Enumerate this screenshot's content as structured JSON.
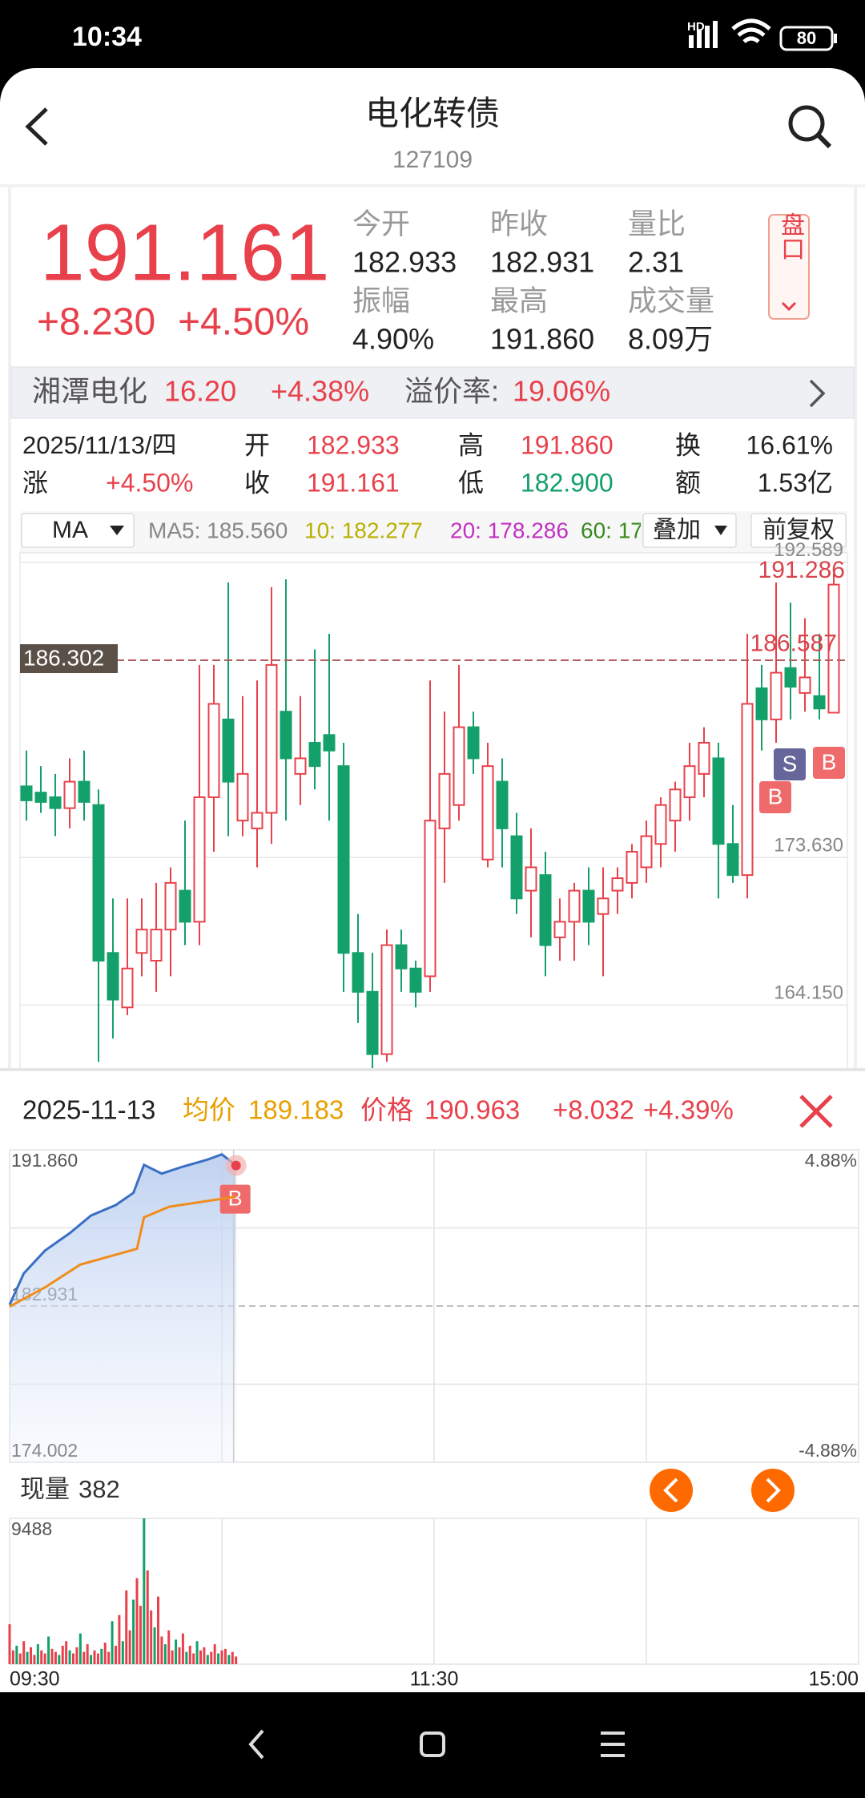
{
  "status_bar": {
    "time": "10:34",
    "network": "HD",
    "battery": "80"
  },
  "header": {
    "title": "电化转债",
    "code": "127109"
  },
  "quote": {
    "price": "191.161",
    "change": "+8.230",
    "change_pct": "+4.50%",
    "stats": [
      {
        "label": "今开",
        "value": "182.933"
      },
      {
        "label": "昨收",
        "value": "182.931"
      },
      {
        "label": "量比",
        "value": "2.31"
      },
      {
        "label": "振幅",
        "value": "4.90%"
      },
      {
        "label": "最高",
        "value": "191.860"
      },
      {
        "label": "成交量",
        "value": "8.09万"
      }
    ],
    "button": "盘口"
  },
  "underlying": {
    "name": "湘潭电化",
    "price": "16.20",
    "change_pct": "+4.38%",
    "premium_label": "溢价率:",
    "premium": "19.06%"
  },
  "day_info": {
    "date": "2025/11/13/四",
    "items": [
      {
        "label": "开",
        "value": "182.933"
      },
      {
        "label": "高",
        "value": "191.860"
      },
      {
        "label": "换",
        "value": "16.61%"
      },
      {
        "label": "涨",
        "value": "+4.50%"
      },
      {
        "label": "收",
        "value": "191.161"
      },
      {
        "label": "低",
        "value": "182.900"
      },
      {
        "label": "额",
        "value": "1.53亿"
      }
    ]
  },
  "ma_bar": {
    "selector": "MA",
    "ma5": "MA5: 185.560",
    "ma10": "10: 182.277",
    "ma20": "20: 178.286",
    "ma60": "60: 17",
    "overlay": "叠加",
    "adjust": "前复权"
  },
  "kline": {
    "type": "candlestick",
    "ylim": [
      160,
      193.2
    ],
    "yticks": [
      192.589,
      {
        "value": 173.63,
        "label": "173.630"
      },
      {
        "value": 164.15,
        "label": "164.150"
      }
    ],
    "reference_line": 186.302,
    "annotations": [
      191.286,
      186.587
    ],
    "markers": [
      "S",
      "B",
      "B"
    ],
    "up_color": "#e8414b",
    "down_color": "#14a06a",
    "open": [
      178.2,
      177.8,
      177.5,
      176.8,
      178.5,
      177,
      167.5,
      164,
      167.5,
      167,
      169,
      171.5,
      169.5,
      177.5,
      182.5,
      176,
      175.5,
      176.5,
      183,
      179,
      181,
      181.5,
      179.5,
      167.5,
      165,
      161,
      168,
      166.5,
      166,
      175.5,
      177,
      182,
      173.5,
      178.5,
      175,
      171.5,
      172.5,
      168.5,
      169.5,
      171.5,
      170,
      171.5,
      172,
      173,
      174.5,
      176,
      177.5,
      179,
      180,
      174.5,
      172.5,
      184.5,
      182.5,
      185.8,
      184.2,
      184,
      182.933
    ],
    "high": [
      180.5,
      179.5,
      179,
      180,
      180.5,
      178,
      171,
      171,
      171,
      172,
      173,
      176,
      186,
      186,
      191.3,
      184,
      185,
      191,
      191.5,
      184,
      187,
      188,
      181,
      170,
      167.5,
      169,
      169,
      167,
      185,
      183,
      186,
      183,
      181,
      180,
      176.5,
      175.5,
      174,
      171,
      172,
      173,
      173,
      173,
      174.5,
      176,
      177.5,
      178.5,
      181,
      182,
      181,
      177,
      188,
      186,
      191.3,
      190,
      189,
      188,
      191.86
    ],
    "low": [
      176,
      176.5,
      175,
      175.5,
      176,
      160.5,
      162,
      163.5,
      166,
      165,
      166,
      168,
      168,
      174,
      175,
      175,
      173,
      174.5,
      176,
      177,
      178,
      176,
      165,
      163,
      160,
      160.5,
      165,
      164,
      165,
      172,
      176,
      179,
      173,
      173,
      170,
      168.5,
      166,
      167,
      167,
      168,
      166,
      170,
      171,
      172,
      173,
      174,
      176,
      177.5,
      171,
      172,
      171,
      180.5,
      181,
      182.5,
      183,
      182.5,
      182.9
    ],
    "close": [
      177.3,
      177.2,
      176.8,
      178.5,
      177.2,
      167,
      164.5,
      166.5,
      169,
      169,
      172,
      169.5,
      177.5,
      183.5,
      178.5,
      179,
      176.5,
      186,
      180,
      180,
      179.5,
      180.5,
      167.5,
      165,
      161,
      168,
      166.5,
      165,
      176,
      179,
      182,
      180,
      179.5,
      175.5,
      171,
      173,
      168,
      169.5,
      171.5,
      169.5,
      171,
      172.3,
      174,
      175,
      177,
      178,
      179.5,
      181,
      174.5,
      172.5,
      183.5,
      182.5,
      185.5,
      184.6,
      185.2,
      183.2,
      191.161
    ]
  },
  "intraday": {
    "date": "2025-11-13",
    "avg_label": "均价",
    "avg": "189.183",
    "price_label": "价格",
    "price": "190.963",
    "change": "+8.032",
    "change_pct": "+4.39%",
    "chart": {
      "type": "line",
      "xlim": [
        0,
        240
      ],
      "xticks": [
        {
          "value": 0,
          "label": "09:30"
        },
        {
          "value": 120,
          "label": "11:30"
        },
        {
          "value": 240,
          "label": "15:00"
        }
      ],
      "ylim": [
        174.002,
        191.86
      ],
      "yticks": [
        {
          "value": 191.86,
          "label": "191.860"
        },
        182.931,
        174.002
      ],
      "y2lim": [
        -4.88,
        4.88
      ],
      "y2ticks": [
        {
          "value": 4.88,
          "label": "4.88%"
        },
        {
          "value": -4.88,
          "label": "-4.88%"
        }
      ],
      "marker": "B",
      "series": [
        {
          "name": "价格",
          "color": "#3a6fc4",
          "x": [
            0,
            4,
            10,
            17,
            23,
            30,
            35,
            38,
            43,
            49,
            56,
            60,
            64
          ],
          "values": [
            183.0,
            184.8,
            186.1,
            187.1,
            188.1,
            188.7,
            189.4,
            191.0,
            190.5,
            190.9,
            191.3,
            191.6,
            190.963
          ]
        },
        {
          "name": "均价",
          "color": "#f08c1a",
          "x": [
            0,
            10,
            20,
            36,
            38,
            45,
            64
          ],
          "values": [
            182.9,
            184.0,
            185.3,
            186.2,
            188.0,
            188.6,
            189.183
          ]
        }
      ]
    },
    "volume": {
      "label": "现量",
      "current": "382",
      "ylim": [
        0,
        9488
      ],
      "yticks": [
        9488
      ],
      "colors": [
        "#e8414b",
        "#14a06a"
      ],
      "values": [
        2600,
        900,
        1200,
        700,
        1500,
        800,
        1100,
        600,
        1300,
        900,
        700,
        1800,
        1000,
        800,
        600,
        1200,
        1500,
        900,
        700,
        1100,
        2000,
        800,
        1300,
        600,
        900,
        700,
        1000,
        1400,
        800,
        2800,
        1200,
        3200,
        1500,
        4800,
        2200,
        4200,
        5600,
        3800,
        9488,
        6100,
        3500,
        2400,
        4400,
        1800,
        1300,
        2200,
        900,
        1600,
        1100,
        2000,
        800,
        1200,
        700,
        1500,
        900,
        1100,
        600,
        800,
        1300,
        700,
        900,
        1000,
        600,
        800,
        500
      ]
    }
  }
}
